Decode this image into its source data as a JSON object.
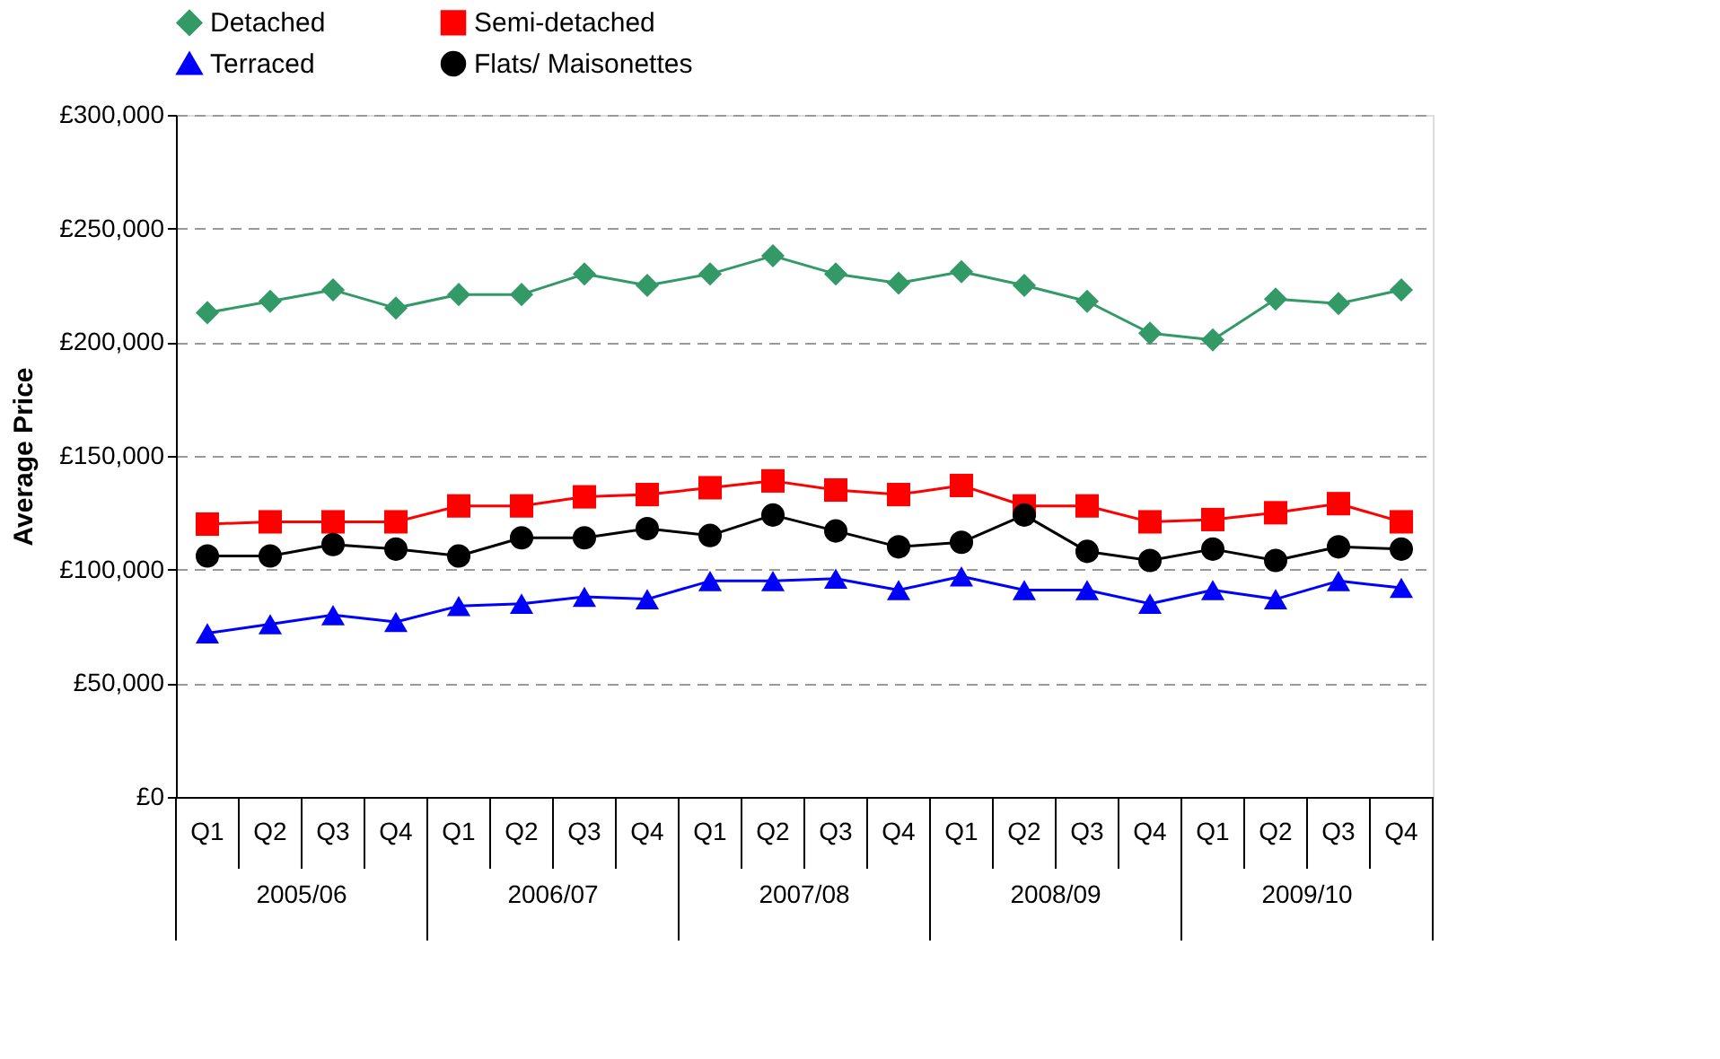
{
  "chart_data": {
    "type": "line",
    "ylabel": "Average Price",
    "categories": [
      "Q1",
      "Q2",
      "Q3",
      "Q4",
      "Q1",
      "Q2",
      "Q3",
      "Q4",
      "Q1",
      "Q2",
      "Q3",
      "Q4",
      "Q1",
      "Q2",
      "Q3",
      "Q4",
      "Q1",
      "Q2",
      "Q3",
      "Q4"
    ],
    "annotations": [
      "2005/06",
      "2006/07",
      "2007/08",
      "2008/09",
      "2009/10"
    ],
    "series": [
      {
        "name": "Detached",
        "color": "#339966",
        "marker": "diamond",
        "values": [
          213000,
          218000,
          223000,
          215000,
          221000,
          221000,
          230000,
          225000,
          230000,
          238000,
          230000,
          226000,
          231000,
          225000,
          218000,
          204000,
          201000,
          219000,
          217000,
          223000
        ]
      },
      {
        "name": "Semi-detached",
        "color": "#ff0000",
        "marker": "square",
        "values": [
          120000,
          121000,
          121000,
          121000,
          128000,
          128000,
          132000,
          133000,
          136000,
          139000,
          135000,
          133000,
          137000,
          128000,
          128000,
          121000,
          122000,
          125000,
          129000,
          121000
        ]
      },
      {
        "name": "Terraced",
        "color": "#0000ff",
        "marker": "triangle",
        "values": [
          72000,
          76000,
          80000,
          77000,
          84000,
          85000,
          88000,
          87000,
          95000,
          95000,
          96000,
          91000,
          97000,
          91000,
          91000,
          85000,
          91000,
          87000,
          95000,
          92000
        ]
      },
      {
        "name": "Flats/ Maisonettes",
        "color": "#000000",
        "marker": "circle",
        "values": [
          106000,
          106000,
          111000,
          109000,
          106000,
          114000,
          114000,
          118000,
          115000,
          124000,
          117000,
          110000,
          112000,
          124000,
          108000,
          104000,
          109000,
          104000,
          110000,
          109000
        ]
      }
    ],
    "ylim": [
      0,
      300000
    ],
    "yticks": [
      {
        "value": 0,
        "label": "£0"
      },
      {
        "value": 50000,
        "label": "£50,000"
      },
      {
        "value": 100000,
        "label": "£100,000"
      },
      {
        "value": 150000,
        "label": "£150,000"
      },
      {
        "value": 200000,
        "label": "£200,000"
      },
      {
        "value": 250000,
        "label": "£250,000"
      },
      {
        "value": 300000,
        "label": "£300,000"
      }
    ],
    "grid": "y",
    "legend": "top",
    "line_style": "solid"
  }
}
